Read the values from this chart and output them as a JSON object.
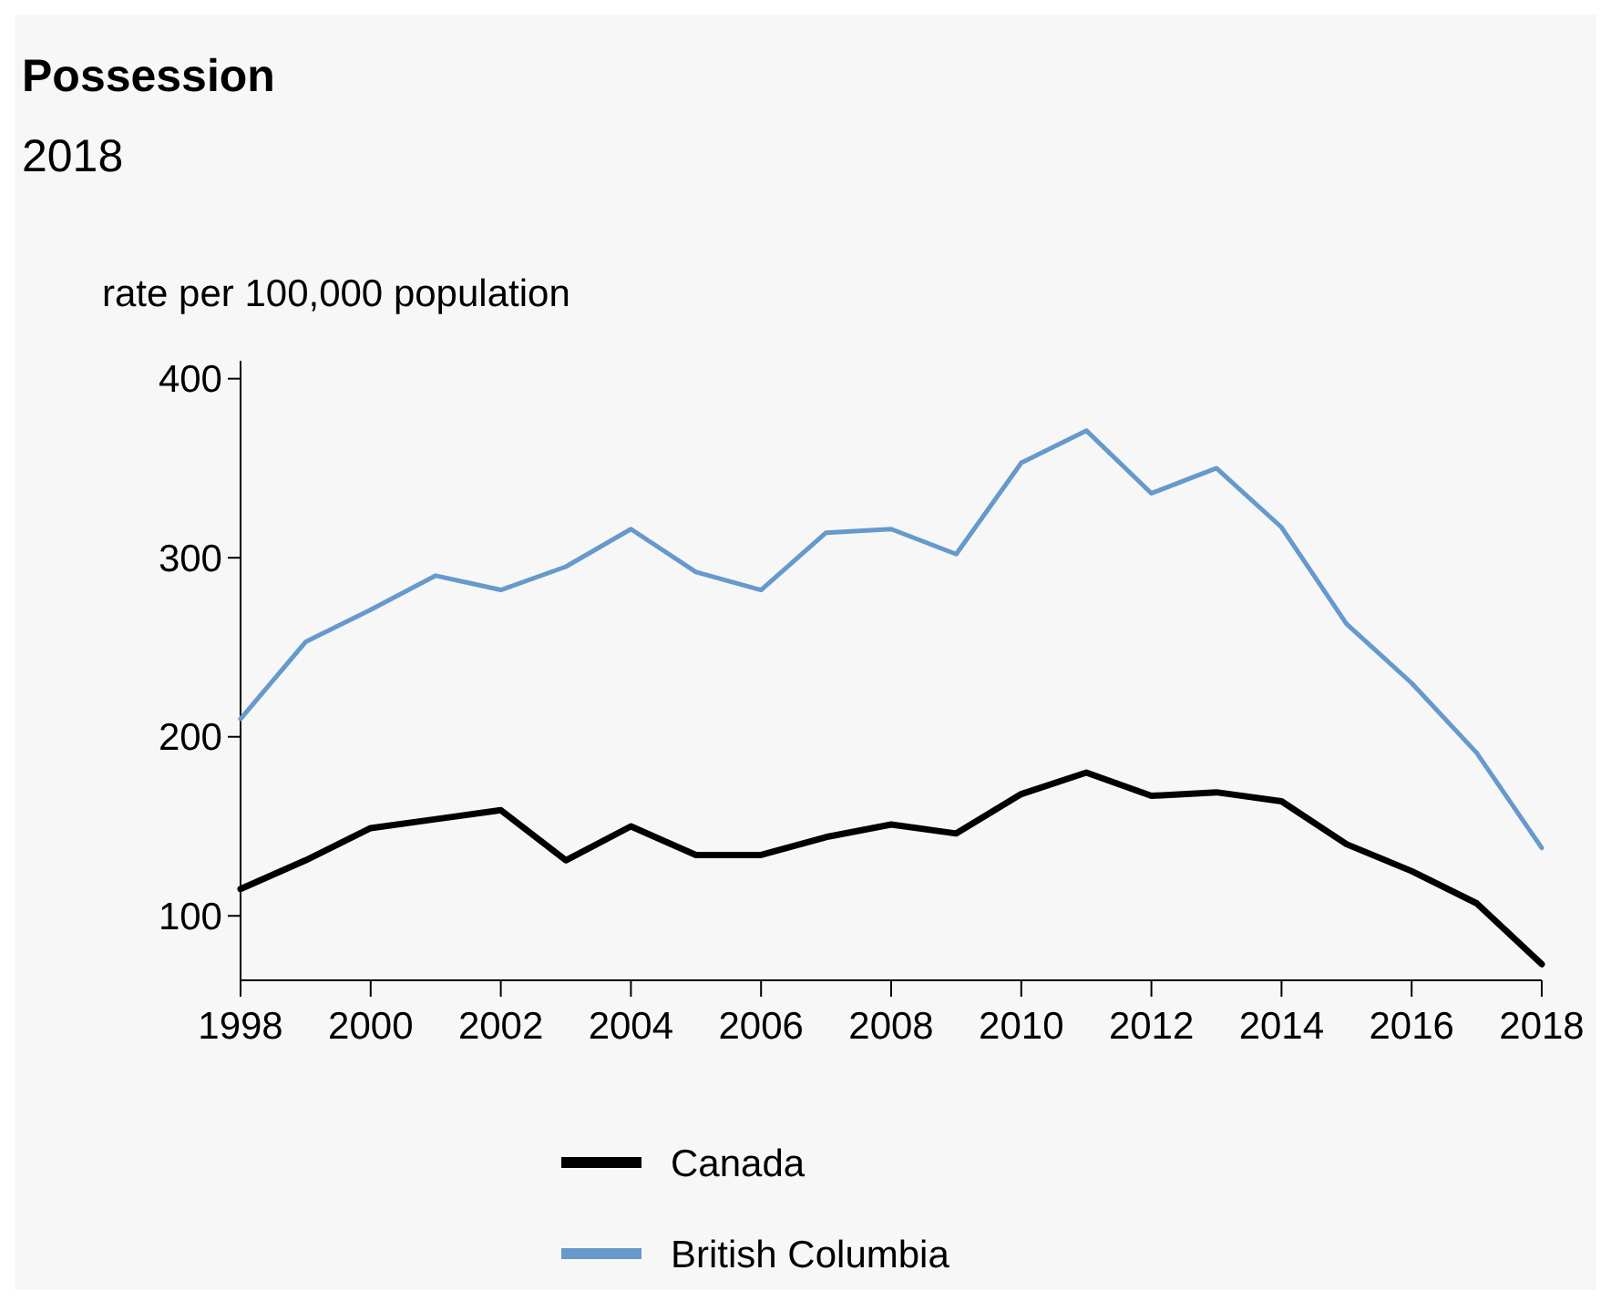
{
  "chart_data": {
    "type": "line",
    "title": "Possession",
    "subtitle": "2018",
    "ylabel": "rate per 100,000 population",
    "x": [
      1998,
      1999,
      2000,
      2001,
      2002,
      2003,
      2004,
      2005,
      2006,
      2007,
      2008,
      2009,
      2010,
      2011,
      2012,
      2013,
      2014,
      2015,
      2016,
      2017,
      2018
    ],
    "xlim": [
      1998,
      2018
    ],
    "xticks": [
      1998,
      2000,
      2002,
      2004,
      2006,
      2008,
      2010,
      2012,
      2014,
      2016,
      2018
    ],
    "ylim": [
      64,
      410
    ],
    "yticks": [
      100,
      200,
      300,
      400
    ],
    "grid": false,
    "legend": "bottom",
    "marker": "none",
    "line_style": "solid",
    "series": [
      {
        "name": "Canada",
        "color": "#000000",
        "values": [
          115,
          131,
          149,
          154,
          159,
          131,
          150,
          134,
          134,
          144,
          151,
          146,
          168,
          180,
          167,
          169,
          164,
          140,
          125,
          107,
          73
        ]
      },
      {
        "name": "British Columbia",
        "color": "#6699cc",
        "values": [
          210,
          253,
          271,
          290,
          282,
          295,
          316,
          292,
          282,
          314,
          316,
          302,
          353,
          371,
          336,
          350,
          317,
          263,
          230,
          191,
          138
        ]
      }
    ]
  }
}
